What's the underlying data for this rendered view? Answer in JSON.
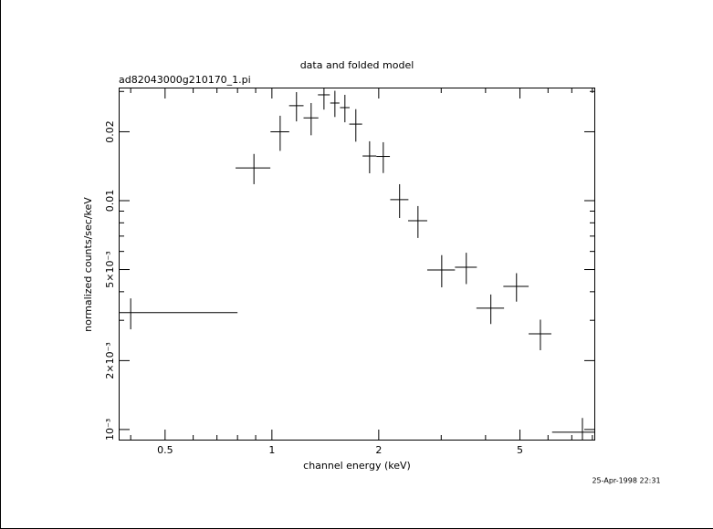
{
  "chart_data": {
    "type": "errorbar",
    "title": "data and folded model",
    "subtitle": "ad82043000g210170_1.pi",
    "x_label": "channel energy (keV)",
    "y_label": "normalized counts/sec/keV",
    "timestamp": "25-Apr-1998 22:31",
    "x_log": true,
    "y_log": true,
    "color": "#000000",
    "x": [
      0.4,
      0.89,
      1.055,
      1.173,
      1.29,
      1.402,
      1.505,
      1.606,
      1.724,
      1.885,
      2.06,
      2.29,
      2.58,
      3.01,
      3.53,
      4.14,
      4.89,
      5.71,
      7.5
    ],
    "x_err": [
      0.4,
      0.1,
      0.064,
      0.055,
      0.062,
      0.054,
      0.045,
      0.05,
      0.072,
      0.084,
      0.09,
      0.135,
      0.16,
      0.27,
      0.25,
      0.37,
      0.4,
      0.42,
      1.34
    ],
    "y": [
      0.00324,
      0.0139,
      0.02,
      0.026,
      0.023,
      0.029,
      0.0267,
      0.0255,
      0.0216,
      0.01567,
      0.0156,
      0.0101,
      0.00817,
      0.00498,
      0.00512,
      0.00339,
      0.00422,
      0.00262,
      0.000973
    ],
    "y_err": [
      0.0005,
      0.0021,
      0.0035,
      0.0038,
      0.0037,
      0.004,
      0.0035,
      0.0035,
      0.0035,
      0.0025,
      0.0024,
      0.0017,
      0.0013,
      0.0008,
      0.0008,
      0.0005,
      0.0006,
      0.0004,
      0.00015
    ],
    "xlim": [
      0.37,
      8.15
    ],
    "ylim": [
      0.000895,
      0.0312
    ],
    "xticks": [
      0.5,
      1,
      2,
      5
    ],
    "xminorticks": [
      0.4,
      0.6,
      0.7,
      0.8,
      0.9,
      3,
      4,
      6,
      7,
      8
    ],
    "yticks": [
      {
        "value": 0.001,
        "label": "10⁻³"
      },
      {
        "value": 0.002,
        "label": "2×10⁻³"
      },
      {
        "value": 0.005,
        "label": "5×10⁻³"
      },
      0.01,
      0.02
    ],
    "yminorticks": [
      0.003,
      0.004,
      0.006,
      0.007,
      0.008,
      0.009,
      0.03
    ]
  }
}
